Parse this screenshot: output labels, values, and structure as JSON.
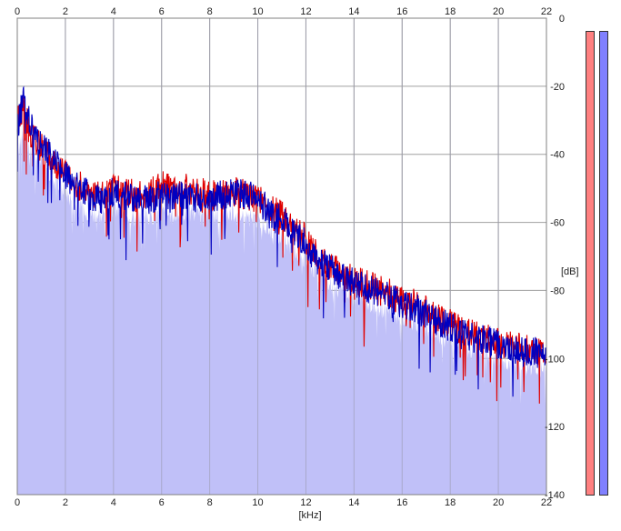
{
  "chart_data": {
    "type": "area",
    "xlabel": "[kHz]",
    "ylabel": "[dB]",
    "xlim": [
      0,
      22
    ],
    "ylim": [
      -140,
      0
    ],
    "x_ticks": [
      "0",
      "2",
      "4",
      "6",
      "8",
      "10",
      "12",
      "14",
      "16",
      "18",
      "20",
      "22"
    ],
    "y_ticks": [
      "0",
      "-20",
      "-40",
      "-60",
      "-80",
      "-100",
      "-120",
      "-140"
    ],
    "grid": true,
    "series": [
      {
        "color": "#e00000",
        "style": "line",
        "x": [
          0,
          0.25,
          0.5,
          1,
          1.5,
          2,
          2.5,
          3,
          3.5,
          4,
          4.5,
          5,
          5.5,
          6,
          6.5,
          7,
          7.5,
          8,
          8.5,
          9,
          9.5,
          10,
          10.5,
          11,
          11.5,
          12,
          12.5,
          13,
          13.5,
          14,
          14.5,
          15,
          15.5,
          16,
          16.5,
          17,
          17.5,
          18,
          18.5,
          19,
          19.5,
          20,
          20.5,
          21,
          21.5,
          22
        ],
        "values": [
          -30,
          -26,
          -33,
          -38,
          -42,
          -45,
          -49,
          -51,
          -52,
          -50,
          -51,
          -52,
          -51,
          -49,
          -51,
          -50,
          -51,
          -52,
          -52,
          -51,
          -52,
          -53,
          -56,
          -58,
          -62,
          -65,
          -70,
          -73,
          -75,
          -77,
          -78,
          -80,
          -81,
          -83,
          -84,
          -86,
          -88,
          -90,
          -92,
          -93,
          -94,
          -95,
          -96,
          -97,
          -97,
          -99
        ]
      },
      {
        "color": "#0000c0",
        "style": "line",
        "x": [
          0,
          0.25,
          0.5,
          1,
          1.5,
          2,
          2.5,
          3,
          3.5,
          4,
          4.5,
          5,
          5.5,
          6,
          6.5,
          7,
          7.5,
          8,
          8.5,
          9,
          9.5,
          10,
          10.5,
          11,
          11.5,
          12,
          12.5,
          13,
          13.5,
          14,
          14.5,
          15,
          15.5,
          16,
          16.5,
          17,
          17.5,
          18,
          18.5,
          19,
          19.5,
          20,
          20.5,
          21,
          21.5,
          22
        ],
        "values": [
          -32,
          -24,
          -30,
          -37,
          -41,
          -46,
          -50,
          -52,
          -53,
          -51,
          -52,
          -54,
          -53,
          -52,
          -53,
          -52,
          -53,
          -53,
          -52,
          -51,
          -52,
          -53,
          -57,
          -59,
          -63,
          -66,
          -71,
          -73,
          -76,
          -78,
          -79,
          -81,
          -82,
          -84,
          -85,
          -87,
          -89,
          -91,
          -93,
          -94,
          -95,
          -96,
          -97,
          -98,
          -98,
          -100
        ]
      },
      {
        "color": "#c0c0f8",
        "style": "filled-area",
        "x": [
          0,
          0.25,
          0.5,
          1,
          1.5,
          2,
          2.5,
          3,
          3.5,
          4,
          4.5,
          5,
          5.5,
          6,
          6.5,
          7,
          7.5,
          8,
          8.5,
          9,
          9.5,
          10,
          10.5,
          11,
          11.5,
          12,
          12.5,
          13,
          13.5,
          14,
          14.5,
          15,
          15.5,
          16,
          16.5,
          17,
          17.5,
          18,
          18.5,
          19,
          19.5,
          20,
          20.5,
          21,
          21.5,
          22
        ],
        "values": [
          -40,
          -33,
          -38,
          -43,
          -47,
          -51,
          -55,
          -57,
          -58,
          -56,
          -57,
          -59,
          -58,
          -57,
          -58,
          -57,
          -58,
          -58,
          -58,
          -57,
          -58,
          -59,
          -62,
          -64,
          -68,
          -71,
          -75,
          -78,
          -80,
          -82,
          -83,
          -85,
          -86,
          -88,
          -89,
          -91,
          -93,
          -95,
          -97,
          -98,
          -99,
          -100,
          -101,
          -102,
          -102,
          -104
        ]
      }
    ]
  },
  "level_meters": [
    {
      "color": "#ff8080"
    },
    {
      "color": "#8080ff"
    }
  ]
}
